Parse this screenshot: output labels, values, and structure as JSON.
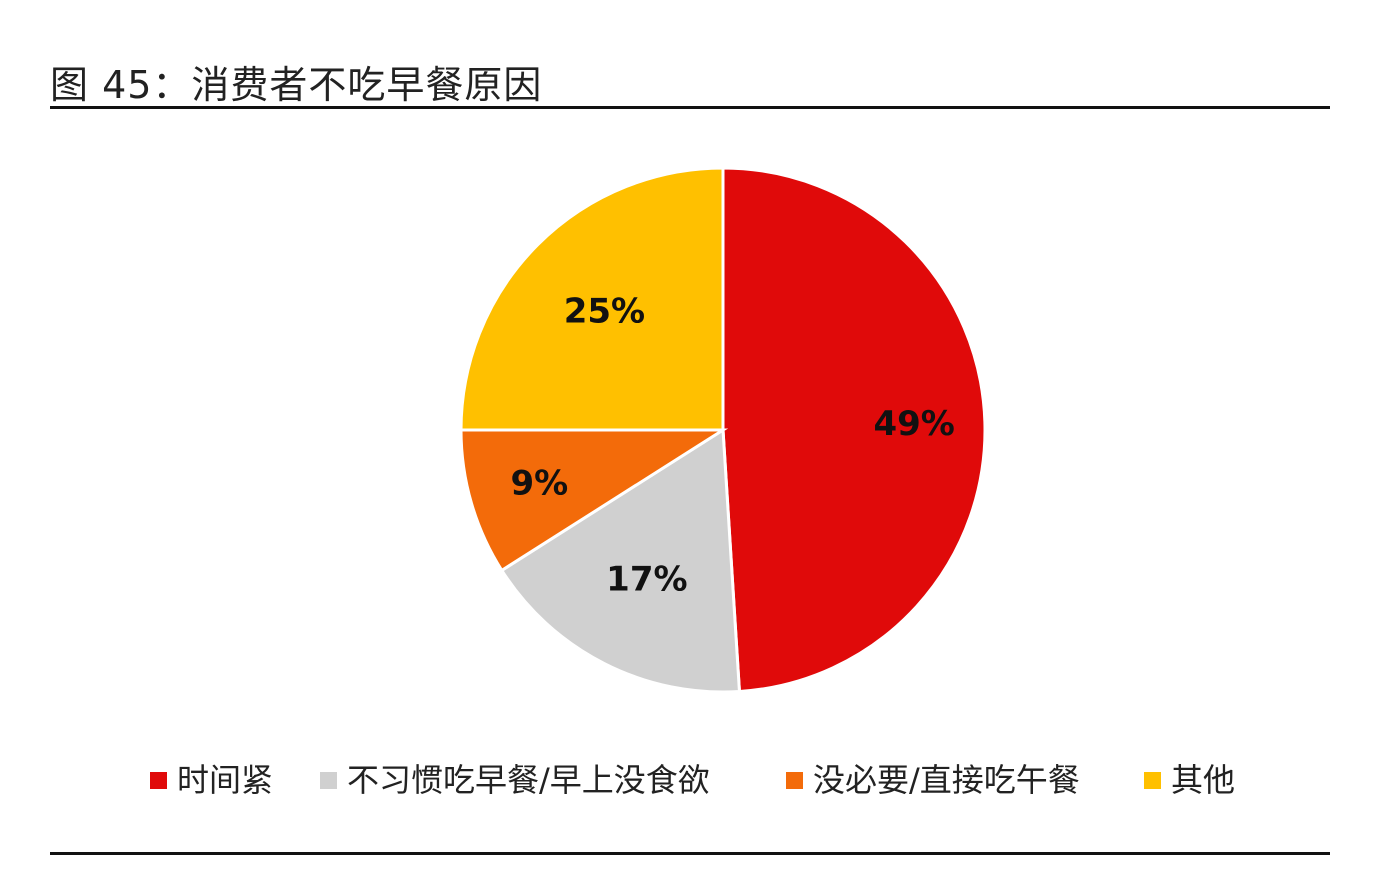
{
  "title": "图 45：消费者不吃早餐原因",
  "chart_data": {
    "type": "pie",
    "title": "图 45：消费者不吃早餐原因",
    "categories": [
      "时间紧",
      "不习惯吃早餐/早上没食欲",
      "没必要/直接吃午餐",
      "其他"
    ],
    "values": [
      49,
      17,
      9,
      25
    ],
    "labels": [
      "49%",
      "17%",
      "9%",
      "25%"
    ],
    "colors": [
      "#e00a0a",
      "#d0d0d0",
      "#f36b0a",
      "#ffc000"
    ],
    "start": "12 o'clock",
    "direction": "clockwise",
    "legend_position": "bottom"
  },
  "legend": [
    {
      "label": "时间紧",
      "color": "#e00a0a"
    },
    {
      "label": "不习惯吃早餐/早上没食欲",
      "color": "#d0d0d0"
    },
    {
      "label": "没必要/直接吃午餐",
      "color": "#f36b0a"
    },
    {
      "label": "其他",
      "color": "#ffc000"
    }
  ]
}
